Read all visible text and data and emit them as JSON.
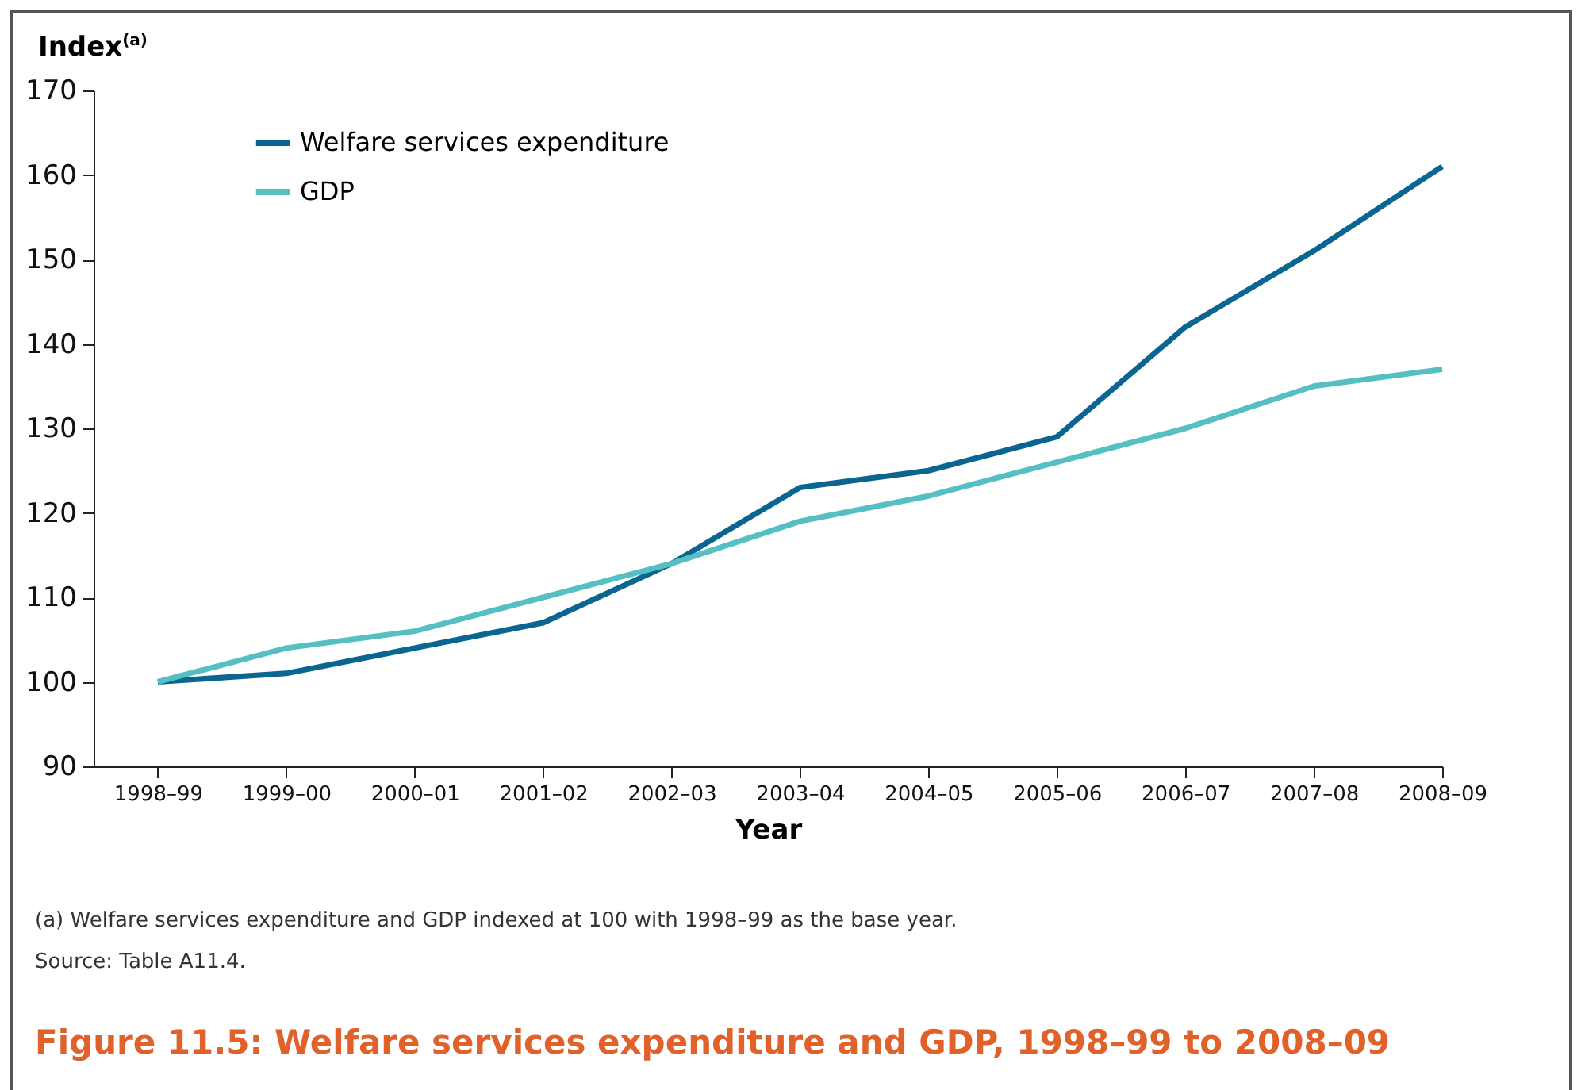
{
  "chart_data": {
    "type": "line",
    "title": "Figure 11.5: Welfare services expenditure and GDP, 1998–99 to 2008–09",
    "xlabel": "Year",
    "ylabel": "Index$^{(a)}$",
    "categories": [
      "1998–99",
      "1999–00",
      "2000–01",
      "2001–02",
      "2002–03",
      "2003–04",
      "2004–05",
      "2005–06",
      "2006–07",
      "2007–08",
      "2008–09"
    ],
    "series": [
      {
        "name": "Welfare services expenditure",
        "color": "#0a6591",
        "values": [
          100,
          101,
          104,
          107,
          114,
          123,
          125,
          129,
          142,
          151,
          161
        ]
      },
      {
        "name": "GDP",
        "color": "#56bfc4",
        "values": [
          100,
          104,
          106,
          110,
          114,
          119,
          122,
          126,
          130,
          135,
          137
        ]
      }
    ],
    "ylim": [
      90,
      170
    ],
    "yticks": [
      90,
      100,
      110,
      120,
      130,
      140,
      150,
      160,
      170
    ],
    "grid": false,
    "legend": "top left",
    "annotations": [
      "(a)  Welfare services expenditure and GDP indexed at 100 with 1998–99 as the base year.",
      "Source: Table A11.4."
    ]
  }
}
